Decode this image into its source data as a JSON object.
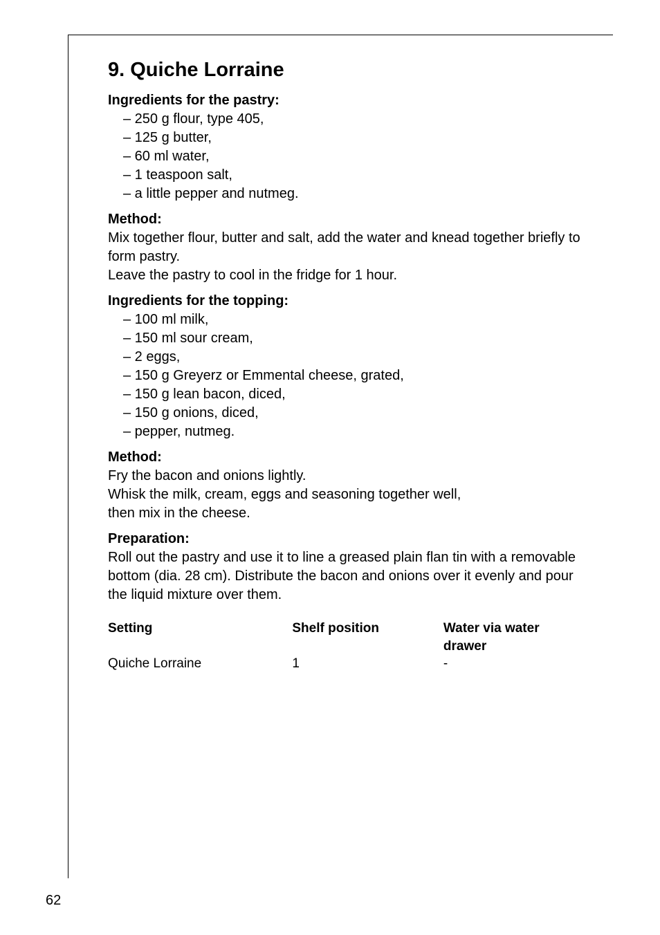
{
  "page_number": "62",
  "recipe_title": "9. Quiche Lorraine",
  "sections": {
    "pastry_heading": "Ingredients for the pastry:",
    "pastry_items": [
      "– 250 g flour, type 405,",
      "– 125 g butter,",
      "– 60 ml water,",
      "– 1 teaspoon salt,",
      "– a little pepper and nutmeg."
    ],
    "method1_heading": "Method:",
    "method1_lines": [
      "Mix together flour, butter and salt, add the water and knead together briefly to form pastry.",
      "Leave the pastry to cool in the fridge for 1 hour."
    ],
    "topping_heading": "Ingredients for the topping:",
    "topping_items": [
      "– 100 ml milk,",
      "– 150 ml sour cream,",
      "– 2 eggs,",
      "– 150 g Greyerz or Emmental cheese, grated,",
      "– 150 g lean bacon, diced,",
      "– 150 g onions, diced,",
      "– pepper, nutmeg."
    ],
    "method2_heading": "Method:",
    "method2_lines": [
      "Fry the bacon and onions lightly.",
      "Whisk the milk, cream, eggs and seasoning together well,",
      "then mix in the cheese."
    ],
    "prep_heading": "Preparation:",
    "prep_text": "Roll out the pastry and use it to line a greased plain flan tin with a removable bottom (dia. 28 cm). Distribute the bacon and onions over it evenly and pour the liquid mixture over them."
  },
  "table": {
    "headers": {
      "col1": "Setting",
      "col2": "Shelf position",
      "col3": "Water via water drawer"
    },
    "row1": {
      "col1": "Quiche Lorraine",
      "col2": "1",
      "col3": "-"
    }
  }
}
